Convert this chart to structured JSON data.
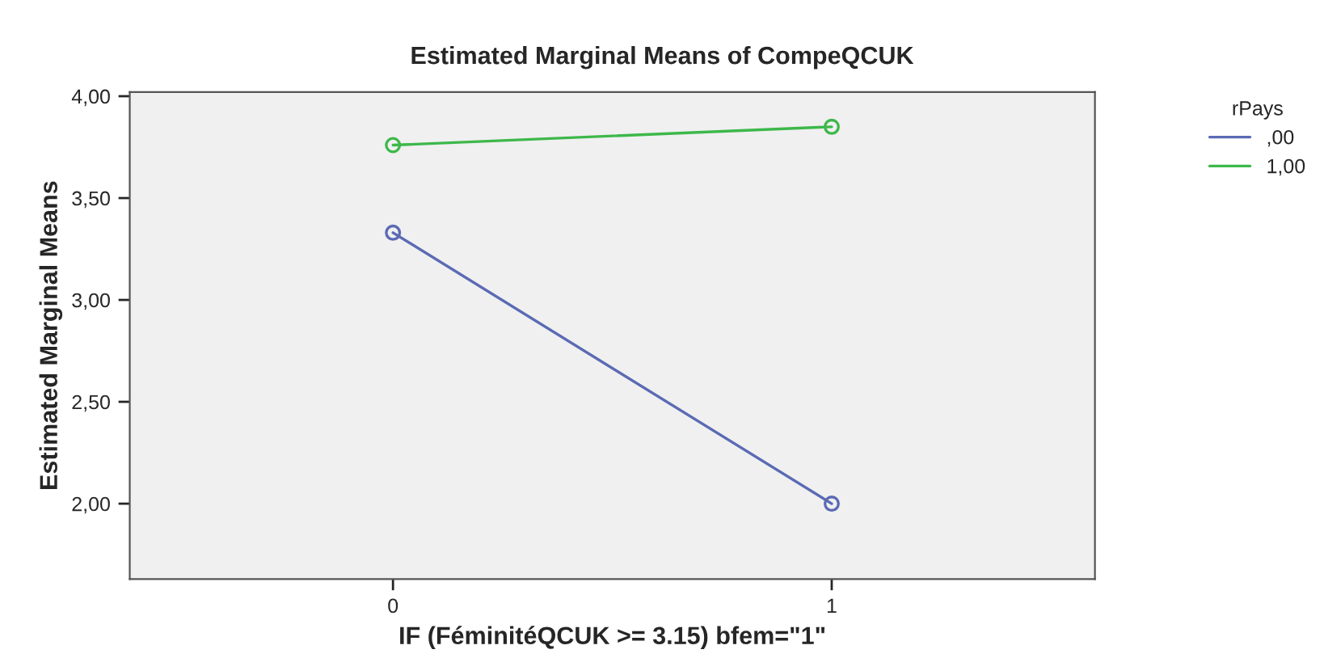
{
  "chart_data": {
    "type": "line",
    "title": "Estimated Marginal Means of CompeQCUK",
    "xlabel": "IF (FéminitéQCUK >= 3.15) bfem=\"1\"",
    "ylabel": "Estimated Marginal Means",
    "x": [
      0,
      1
    ],
    "xlim": [
      -0.6,
      1.6
    ],
    "xticks": [
      0,
      1
    ],
    "ylim": [
      1.63,
      4.02
    ],
    "yticks": [
      {
        "value": 2.0,
        "label": "2,00"
      },
      {
        "value": 2.5,
        "label": "2,50"
      },
      {
        "value": 3.0,
        "label": "3,00"
      },
      {
        "value": 3.5,
        "label": "3,50"
      },
      {
        "value": 4.0,
        "label": "4,00"
      }
    ],
    "legend_title": "rPays",
    "legend": "top right",
    "marker": "circle",
    "grid": false,
    "series": [
      {
        "name": ",00",
        "color": "#5b6ab4",
        "values": [
          3.33,
          2.0
        ]
      },
      {
        "name": "1,00",
        "color": "#3db84a",
        "values": [
          3.76,
          3.85
        ]
      }
    ]
  }
}
